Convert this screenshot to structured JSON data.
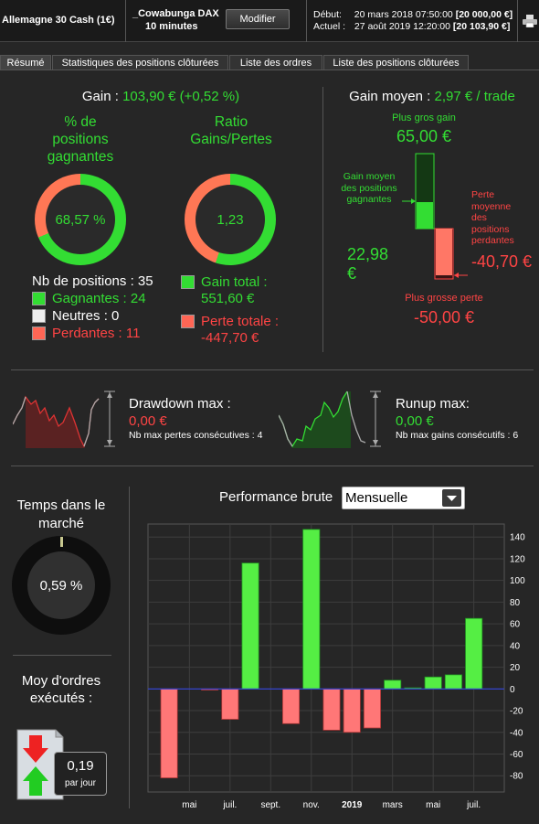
{
  "topbar": {
    "instrument": "Allemagne 30 Cash (1€)",
    "strategy_name": "_Cowabunga DAX",
    "timeframe": "10 minutes",
    "modify_label": "Modifier",
    "start_label": "Début:",
    "start_date": "20 mars 2018 07:50:00",
    "start_amount": "[20 000,00 €]",
    "current_label": "Actuel :",
    "current_date": "27 août 2019 12:20:00",
    "current_amount": "[20 103,90 €]",
    "print_icon": "printer-icon"
  },
  "tabs": [
    "Résumé",
    "Statistiques des positions clôturées",
    "Liste des ordres",
    "Liste des positions clôturées"
  ],
  "summary": {
    "gain_label": "Gain :",
    "gain_value": "103,90 € (+0,52 %)",
    "pct_winning_title": "% de positions gagnantes",
    "pct_winning_value": "68,57 %",
    "pct_winning_fraction": 0.6857,
    "ratio_title": "Ratio Gains/Pertes",
    "ratio_value": "1,23",
    "ratio_win_fraction": 0.552,
    "nb_positions": "Nb de positions : 35",
    "winning": "Gagnantes : 24",
    "neutral": "Neutres : 0",
    "losing": "Perdantes : 11",
    "total_gain_label": "Gain total :",
    "total_gain_value": "551,60 €",
    "total_loss_label": "Perte totale :",
    "total_loss_value": "-447,70 €"
  },
  "avg_gain": {
    "label": "Gain moyen :",
    "value": "2,97 € / trade",
    "largest_gain_label": "Plus gros gain",
    "largest_gain_value": "65,00 €",
    "avg_winning_label": "Gain moyen des positions gagnantes",
    "avg_winning_value": "22,98 €",
    "avg_losing_label": "Perte moyenne des positions perdantes",
    "avg_losing_value": "-40,70 €",
    "largest_loss_label": "Plus grosse perte",
    "largest_loss_value": "-50,00 €"
  },
  "drawdown": {
    "label": "Drawdown max :",
    "value": "0,00 €",
    "sub": "Nb max pertes consécutives : 4"
  },
  "runup": {
    "label": "Runup max:",
    "value": "0,00 €",
    "sub": "Nb max gains consécutifs : 6"
  },
  "time_in_market": {
    "title": "Temps dans le marché",
    "value": "0,59 %",
    "fraction": 0.0059
  },
  "orders": {
    "title": "Moy d'ordres exécutés :",
    "value": "0,19",
    "unit": "par jour"
  },
  "performance": {
    "title": "Performance brute",
    "period": "Mensuelle"
  },
  "colors": {
    "green": "#33dd33",
    "red": "#ff4444",
    "bar_green": "#55ee44",
    "bar_red": "#ff7777"
  },
  "chart_data": {
    "type": "bar",
    "categories": [
      "2018-04",
      "2018-05",
      "2018-06",
      "2018-07",
      "2018-08",
      "2018-09",
      "2018-10",
      "2018-11",
      "2018-12",
      "2019-01",
      "2019-02",
      "2019-03",
      "2019-04",
      "2019-05",
      "2019-06",
      "2019-07",
      "2019-08"
    ],
    "values": [
      -82,
      0,
      -1,
      -28,
      116,
      0,
      -32,
      147,
      -38,
      -40,
      -36,
      8,
      1,
      11,
      13,
      65,
      0
    ],
    "xticks": [
      {
        "label": "mai",
        "index": 1
      },
      {
        "label": "juil.",
        "index": 3
      },
      {
        "label": "sept.",
        "index": 5
      },
      {
        "label": "nov.",
        "index": 7
      },
      {
        "label": "2019",
        "index": 9
      },
      {
        "label": "mars",
        "index": 11
      },
      {
        "label": "mai",
        "index": 13
      },
      {
        "label": "juil.",
        "index": 15
      }
    ],
    "ylim": [
      -95,
      152
    ],
    "yticks": [
      140,
      120,
      100,
      80,
      60,
      40,
      20,
      0,
      -20,
      -40,
      -60,
      -80
    ],
    "title": "Performance brute",
    "grid": true
  }
}
